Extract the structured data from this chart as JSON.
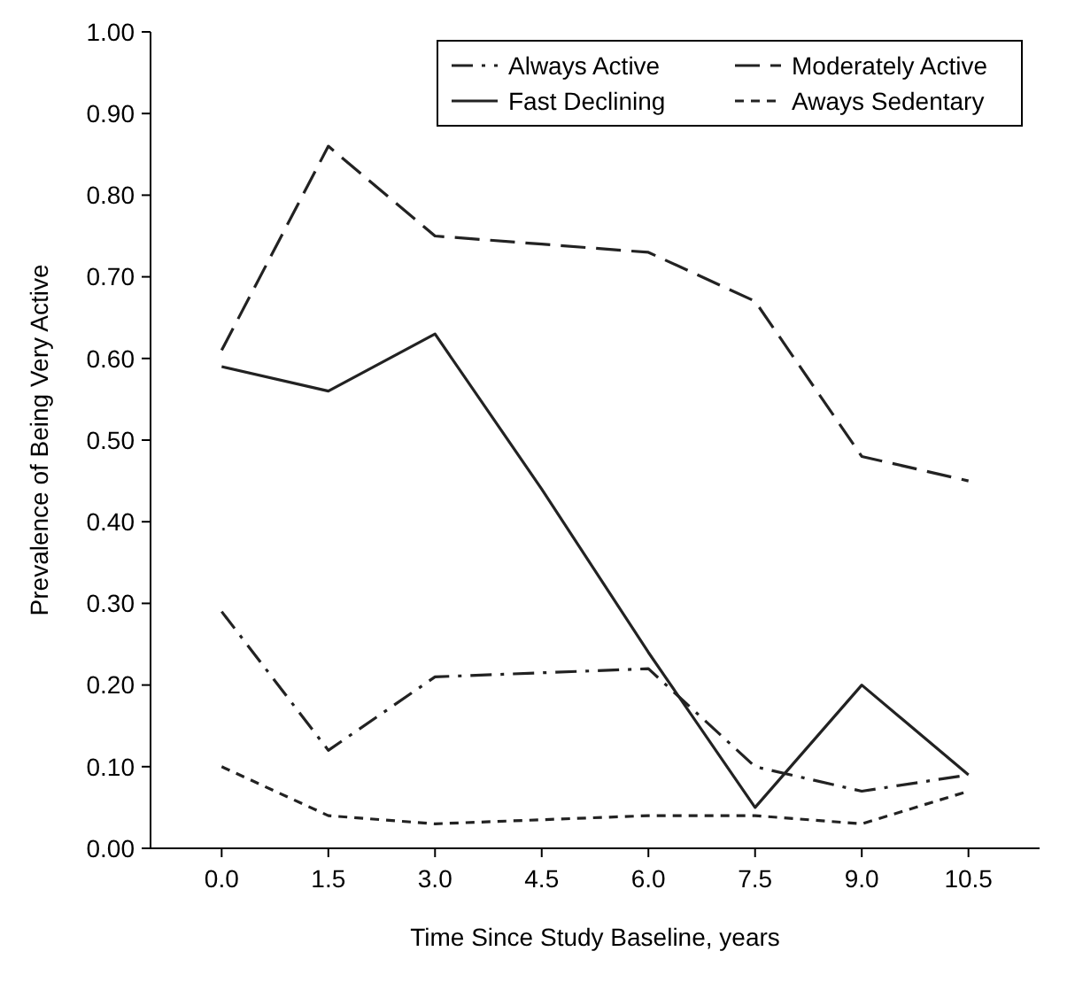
{
  "chart_data": {
    "type": "line",
    "xlabel": "Time Since Study Baseline, years",
    "ylabel": "Prevalence of Being Very Active",
    "x": [
      0,
      1.5,
      3,
      4.5,
      6,
      7.5,
      9,
      10.5
    ],
    "xlim": [
      -1,
      11.5
    ],
    "xticks": [
      {
        "value": 0,
        "label": "0.0"
      },
      {
        "value": 1.5,
        "label": "1.5"
      },
      {
        "value": 3,
        "label": "3.0"
      },
      {
        "value": 4.5,
        "label": "4.5"
      },
      {
        "value": 6,
        "label": "6.0"
      },
      {
        "value": 7.5,
        "label": "7.5"
      },
      {
        "value": 9,
        "label": "9.0"
      },
      {
        "value": 10.5,
        "label": "10.5"
      }
    ],
    "ylim": [
      0,
      1
    ],
    "yticks": [
      {
        "value": 0,
        "label": "0.00"
      },
      {
        "value": 0.1,
        "label": "0.10"
      },
      {
        "value": 0.2,
        "label": "0.20"
      },
      {
        "value": 0.3,
        "label": "0.30"
      },
      {
        "value": 0.4,
        "label": "0.40"
      },
      {
        "value": 0.5,
        "label": "0.50"
      },
      {
        "value": 0.6,
        "label": "0.60"
      },
      {
        "value": 0.7,
        "label": "0.70"
      },
      {
        "value": 0.8,
        "label": "0.80"
      },
      {
        "value": 0.9,
        "label": "0.90"
      },
      {
        "value": 1,
        "label": "1.00"
      }
    ],
    "grid": false,
    "legend": "top right",
    "marker": "none",
    "series": [
      {
        "name": "Always Active",
        "color": "#222222",
        "line_style": "dashdot",
        "values": [
          0.29,
          0.12,
          0.21,
          0.215,
          0.22,
          0.1,
          0.07,
          0.09
        ]
      },
      {
        "name": "Moderately Active",
        "color": "#222222",
        "line_style": "dashed",
        "values": [
          0.61,
          0.86,
          0.75,
          0.74,
          0.73,
          0.67,
          0.48,
          0.45
        ]
      },
      {
        "name": "Fast Declining",
        "color": "#222222",
        "line_style": "solid",
        "values": [
          0.59,
          0.56,
          0.63,
          0.44,
          0.24,
          0.05,
          0.2,
          0.09
        ]
      },
      {
        "name": "Aways Sedentary",
        "color": "#222222",
        "line_style": "dotted",
        "values": [
          0.1,
          0.04,
          0.03,
          0.035,
          0.04,
          0.04,
          0.03,
          0.07
        ]
      }
    ]
  }
}
